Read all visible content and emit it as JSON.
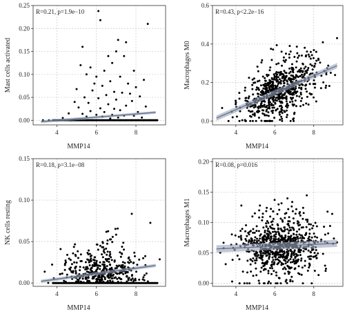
{
  "chart_data": [
    {
      "type": "scatter",
      "xlabel": "MMP14",
      "ylabel": "Mast cells activated",
      "annotation": "R=0.21, p=1.9e−10",
      "xlim": [
        2.8,
        9.5
      ],
      "ylim": [
        -0.01,
        0.25
      ],
      "xticks": [
        "4",
        "6",
        "8"
      ],
      "xtick_values": [
        4,
        6,
        8
      ],
      "yticks": [
        "0.00",
        "0.05",
        "0.10",
        "0.15",
        "0.20",
        "0.25"
      ],
      "ytick_values": [
        0,
        0.05,
        0.1,
        0.15,
        0.2,
        0.25
      ],
      "fit": {
        "slope": 0.0035,
        "intercept": -0.0143,
        "x_range": [
          3.2,
          9.0
        ],
        "band": 0.003
      },
      "points": [
        [
          6.1,
          0.238
        ],
        [
          6.2,
          0.218
        ],
        [
          8.6,
          0.21
        ],
        [
          7.1,
          0.175
        ],
        [
          7.5,
          0.17
        ],
        [
          5.3,
          0.16
        ],
        [
          7.0,
          0.15
        ],
        [
          6.6,
          0.14
        ],
        [
          7.4,
          0.14
        ],
        [
          6.8,
          0.125
        ],
        [
          5.2,
          0.12
        ],
        [
          5.7,
          0.115
        ],
        [
          6.4,
          0.108
        ],
        [
          7.9,
          0.108
        ],
        [
          5.5,
          0.1
        ],
        [
          6.0,
          0.095
        ],
        [
          7.2,
          0.095
        ],
        [
          8.4,
          0.088
        ],
        [
          6.7,
          0.085
        ],
        [
          5.9,
          0.08
        ],
        [
          7.6,
          0.08
        ],
        [
          6.3,
          0.075
        ],
        [
          8.0,
          0.072
        ],
        [
          5.0,
          0.068
        ],
        [
          5.8,
          0.065
        ],
        [
          6.9,
          0.062
        ],
        [
          7.3,
          0.06
        ],
        [
          7.7,
          0.058
        ],
        [
          6.5,
          0.055
        ],
        [
          8.2,
          0.052
        ],
        [
          5.4,
          0.05
        ],
        [
          6.1,
          0.048
        ],
        [
          7.0,
          0.045
        ],
        [
          7.8,
          0.042
        ],
        [
          4.9,
          0.04
        ],
        [
          5.6,
          0.038
        ],
        [
          6.6,
          0.035
        ],
        [
          7.5,
          0.032
        ],
        [
          8.5,
          0.03
        ],
        [
          5.1,
          0.028
        ],
        [
          6.2,
          0.026
        ],
        [
          6.9,
          0.025
        ],
        [
          7.2,
          0.022
        ],
        [
          5.7,
          0.02
        ],
        [
          6.4,
          0.018
        ],
        [
          8.1,
          0.018
        ],
        [
          4.6,
          0.015
        ],
        [
          5.3,
          0.014
        ],
        [
          6.0,
          0.012
        ],
        [
          6.8,
          0.012
        ],
        [
          7.4,
          0.01
        ],
        [
          7.9,
          0.01
        ],
        [
          5.5,
          0.008
        ],
        [
          6.3,
          0.008
        ],
        [
          7.1,
          0.006
        ],
        [
          8.3,
          0.006
        ],
        [
          4.3,
          0.005
        ],
        [
          6.7,
          0.004
        ],
        [
          3.3,
          0.0
        ],
        [
          3.6,
          0.0
        ],
        [
          3.9,
          0.0
        ],
        [
          4.1,
          0.0
        ],
        [
          4.4,
          0.0
        ],
        [
          4.7,
          0.0
        ],
        [
          5.0,
          0.0
        ],
        [
          5.2,
          0.0
        ],
        [
          5.5,
          0.0
        ],
        [
          5.8,
          0.0
        ],
        [
          6.0,
          0.0
        ],
        [
          6.3,
          0.0
        ],
        [
          6.6,
          0.0
        ],
        [
          6.9,
          0.0
        ],
        [
          7.2,
          0.0
        ],
        [
          7.5,
          0.0
        ],
        [
          7.8,
          0.0
        ],
        [
          8.1,
          0.0
        ],
        [
          8.4,
          0.0
        ],
        [
          8.7,
          0.0
        ],
        [
          9.0,
          0.0
        ]
      ],
      "dense_x": [
        3.8,
        9.1
      ]
    },
    {
      "type": "scatter",
      "xlabel": "MMP14",
      "ylabel": "Macrophages M0",
      "annotation": "R=0.43, p<2.2e−16",
      "xlim": [
        2.8,
        9.5
      ],
      "ylim": [
        -0.02,
        0.6
      ],
      "xticks": [
        "4",
        "6",
        "8"
      ],
      "xtick_values": [
        4,
        6,
        8
      ],
      "yticks": [
        "0.0",
        "0.2",
        "0.4",
        "0.6"
      ],
      "ytick_values": [
        0,
        0.2,
        0.4,
        0.6
      ],
      "fit": {
        "slope": 0.044,
        "intercept": -0.117,
        "x_range": [
          3.0,
          9.2
        ],
        "band": 0.014
      },
      "seed": 11,
      "n": 700,
      "mean_x": 6.3,
      "sd_x": 1.0,
      "noise": 0.09
    },
    {
      "type": "scatter",
      "xlabel": "MMP14",
      "ylabel": "NK cells resting",
      "annotation": "R=0.18, p=3.1e−08",
      "xlim": [
        2.8,
        9.5
      ],
      "ylim": [
        -0.004,
        0.15
      ],
      "xticks": [
        "4",
        "6",
        "8"
      ],
      "xtick_values": [
        4,
        6,
        8
      ],
      "yticks": [
        "0.00",
        "0.05",
        "0.10",
        "0.15"
      ],
      "ytick_values": [
        0,
        0.05,
        0.1,
        0.15
      ],
      "fit": {
        "slope": 0.0033,
        "intercept": -0.0085,
        "x_range": [
          3.2,
          9.0
        ],
        "band": 0.002
      },
      "seed": 23,
      "n": 420,
      "mean_x": 6.4,
      "sd_x": 0.95,
      "noise": 0.025,
      "dense_x": [
        3.8,
        9.1
      ]
    },
    {
      "type": "scatter",
      "xlabel": "MMP14",
      "ylabel": "Macrophages M1",
      "annotation": "R=0.08, p=0.016",
      "xlim": [
        2.8,
        9.5
      ],
      "ylim": [
        -0.005,
        0.205
      ],
      "xticks": [
        "4",
        "6",
        "8"
      ],
      "xtick_values": [
        4,
        6,
        8
      ],
      "yticks": [
        "0.00",
        "0.05",
        "0.10",
        "0.15",
        "0.20"
      ],
      "ytick_values": [
        0,
        0.05,
        0.1,
        0.15,
        0.2
      ],
      "fit": {
        "slope": 0.0015,
        "intercept": 0.052,
        "x_range": [
          3.0,
          9.2
        ],
        "band": 0.006
      },
      "seed": 37,
      "n": 800,
      "mean_x": 6.3,
      "sd_x": 1.0,
      "noise": 0.032
    }
  ]
}
